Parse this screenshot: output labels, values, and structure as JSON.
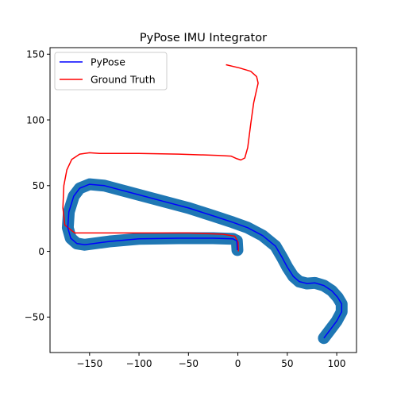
{
  "chart_data": {
    "type": "line",
    "title": "PyPose IMU Integrator",
    "xlabel": "",
    "ylabel": "",
    "xlim": [
      -190,
      120
    ],
    "ylim": [
      -77,
      155
    ],
    "xticks": [
      -150,
      -100,
      -50,
      0,
      50,
      100
    ],
    "yticks": [
      -50,
      0,
      50,
      100,
      150
    ],
    "x_tick_labels": [
      "−150",
      "−100",
      "−50",
      "0",
      "50",
      "100"
    ],
    "y_tick_labels": [
      "−50",
      "0",
      "50",
      "100",
      "150"
    ],
    "grid": false,
    "legend": {
      "placement": "top-left",
      "entries": [
        "PyPose",
        "Ground Truth"
      ]
    },
    "uncertainty_band": {
      "color": "#1f77b4",
      "half_width_units": 6
    },
    "series": [
      {
        "name": "PyPose",
        "color": "#0000ff",
        "points": [
          [
            -0.5,
            1
          ],
          [
            -1,
            8
          ],
          [
            -5,
            9.5
          ],
          [
            -25,
            10
          ],
          [
            -60,
            10
          ],
          [
            -100,
            9.5
          ],
          [
            -130,
            7.5
          ],
          [
            -155,
            5
          ],
          [
            -163,
            6
          ],
          [
            -169,
            10
          ],
          [
            -172,
            18
          ],
          [
            -171,
            30
          ],
          [
            -166,
            42
          ],
          [
            -160,
            48
          ],
          [
            -150,
            51
          ],
          [
            -135,
            50
          ],
          [
            -120,
            47
          ],
          [
            -100,
            43
          ],
          [
            -75,
            38
          ],
          [
            -50,
            33
          ],
          [
            -25,
            27
          ],
          [
            -5,
            22
          ],
          [
            10,
            18
          ],
          [
            25,
            12
          ],
          [
            38,
            4
          ],
          [
            45,
            -5
          ],
          [
            50,
            -12
          ],
          [
            56,
            -19
          ],
          [
            62,
            -23
          ],
          [
            70,
            -24.5
          ],
          [
            78,
            -24
          ],
          [
            87,
            -26
          ],
          [
            95,
            -30
          ],
          [
            101,
            -35
          ],
          [
            105,
            -40
          ],
          [
            105,
            -46
          ],
          [
            100,
            -53
          ],
          [
            93,
            -60
          ],
          [
            87,
            -66
          ]
        ]
      },
      {
        "name": "Ground Truth",
        "color": "#ff0000",
        "points": [
          [
            0.5,
            0
          ],
          [
            0.2,
            7
          ],
          [
            -3,
            11.5
          ],
          [
            -15,
            13
          ],
          [
            -50,
            14
          ],
          [
            -100,
            14
          ],
          [
            -140,
            14
          ],
          [
            -165,
            14
          ],
          [
            -175,
            20
          ],
          [
            -177,
            33
          ],
          [
            -176,
            50
          ],
          [
            -173,
            62
          ],
          [
            -168,
            70
          ],
          [
            -160,
            74
          ],
          [
            -150,
            75
          ],
          [
            -140,
            74.5
          ],
          [
            -100,
            74.5
          ],
          [
            -60,
            74
          ],
          [
            -20,
            73
          ],
          [
            -7,
            72.5
          ],
          [
            -1,
            70.5
          ],
          [
            3,
            69.5
          ],
          [
            7,
            71
          ],
          [
            10,
            79
          ],
          [
            13,
            97
          ],
          [
            16,
            113
          ],
          [
            19,
            123
          ],
          [
            20.5,
            128
          ],
          [
            19,
            133
          ],
          [
            13,
            137
          ],
          [
            2,
            139.5
          ],
          [
            -12,
            142
          ]
        ]
      }
    ]
  }
}
